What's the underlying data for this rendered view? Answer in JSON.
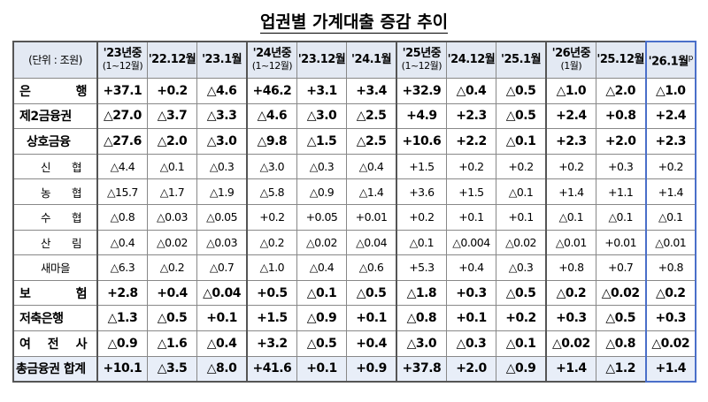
{
  "title": "업권별 가계대출 증감 추이",
  "table": {
    "unit": "(단위 : 조원)",
    "columns": [
      {
        "label": "'23년중",
        "sub": "(1~12월)"
      },
      {
        "label": "'22.12월"
      },
      {
        "label": "'23.1월"
      },
      {
        "label": "'24년중",
        "sub": "(1~12월)"
      },
      {
        "label": "'23.12월"
      },
      {
        "label": "'24.1월"
      },
      {
        "label": "'25년중",
        "sub": "(1~12월)"
      },
      {
        "label": "'24.12월"
      },
      {
        "label": "'25.1월"
      },
      {
        "label": "'26년중",
        "sub": "(1월)"
      },
      {
        "label": "'25.12월"
      },
      {
        "label": "'26.1월",
        "mark": "p"
      }
    ],
    "rows": [
      {
        "label": "은 행",
        "values": [
          "+37.1",
          "+0.2",
          "△4.6",
          "+46.2",
          "+3.1",
          "+3.4",
          "+32.9",
          "△0.4",
          "△0.5",
          "△1.0",
          "△2.0",
          "△1.0"
        ]
      },
      {
        "label": "제2금융권",
        "values": [
          "△27.0",
          "△3.7",
          "△3.3",
          "△4.6",
          "△3.0",
          "△2.5",
          "+4.9",
          "+2.3",
          "△0.5",
          "+2.4",
          "+0.8",
          "+2.4"
        ]
      },
      {
        "label": "상호금융",
        "values": [
          "△27.6",
          "△2.0",
          "△3.0",
          "△9.8",
          "△1.5",
          "△2.5",
          "+10.6",
          "+2.2",
          "△0.1",
          "+2.3",
          "+2.0",
          "+2.3"
        ]
      },
      {
        "label": "신 협",
        "values": [
          "△4.4",
          "△0.1",
          "△0.3",
          "△3.0",
          "△0.3",
          "△0.4",
          "+1.5",
          "+0.2",
          "+0.2",
          "+0.2",
          "+0.3",
          "+0.2"
        ]
      },
      {
        "label": "농 협",
        "values": [
          "△15.7",
          "△1.7",
          "△1.9",
          "△5.8",
          "△0.9",
          "△1.4",
          "+3.6",
          "+1.5",
          "△0.1",
          "+1.4",
          "+1.1",
          "+1.4"
        ]
      },
      {
        "label": "수 협",
        "values": [
          "△0.8",
          "△0.03",
          "△0.05",
          "+0.2",
          "+0.05",
          "+0.01",
          "+0.2",
          "+0.1",
          "+0.1",
          "△0.1",
          "△0.1",
          "△0.1"
        ]
      },
      {
        "label": "산 림",
        "values": [
          "△0.4",
          "△0.02",
          "△0.03",
          "△0.2",
          "△0.02",
          "△0.04",
          "△0.1",
          "△0.004",
          "△0.02",
          "△0.01",
          "+0.01",
          "△0.01"
        ]
      },
      {
        "label": "새마을",
        "values": [
          "△6.3",
          "△0.2",
          "△0.7",
          "△1.0",
          "△0.4",
          "△0.6",
          "+5.3",
          "+0.4",
          "△0.3",
          "+0.8",
          "+0.7",
          "+0.8"
        ]
      },
      {
        "label": "보 험",
        "values": [
          "+2.8",
          "+0.4",
          "△0.04",
          "+0.5",
          "△0.1",
          "△0.5",
          "△1.8",
          "+0.3",
          "△0.5",
          "△0.2",
          "△0.02",
          "△0.2"
        ]
      },
      {
        "label": "저축은행",
        "values": [
          "△1.3",
          "△0.5",
          "+0.1",
          "+1.5",
          "△0.9",
          "+0.1",
          "△0.8",
          "+0.1",
          "+0.2",
          "+0.3",
          "△0.5",
          "+0.3"
        ]
      },
      {
        "label": "여 전 사",
        "values": [
          "△0.9",
          "△1.6",
          "△0.4",
          "+3.2",
          "△0.5",
          "+0.4",
          "△3.0",
          "△0.3",
          "△0.1",
          "△0.02",
          "△0.8",
          "△0.02"
        ]
      },
      {
        "label": "총금융권 합계",
        "values": [
          "+10.1",
          "△3.5",
          "△8.0",
          "+41.6",
          "+0.1",
          "+0.9",
          "+37.8",
          "+2.0",
          "△0.9",
          "+1.4",
          "△1.2",
          "+1.4"
        ]
      }
    ]
  }
}
